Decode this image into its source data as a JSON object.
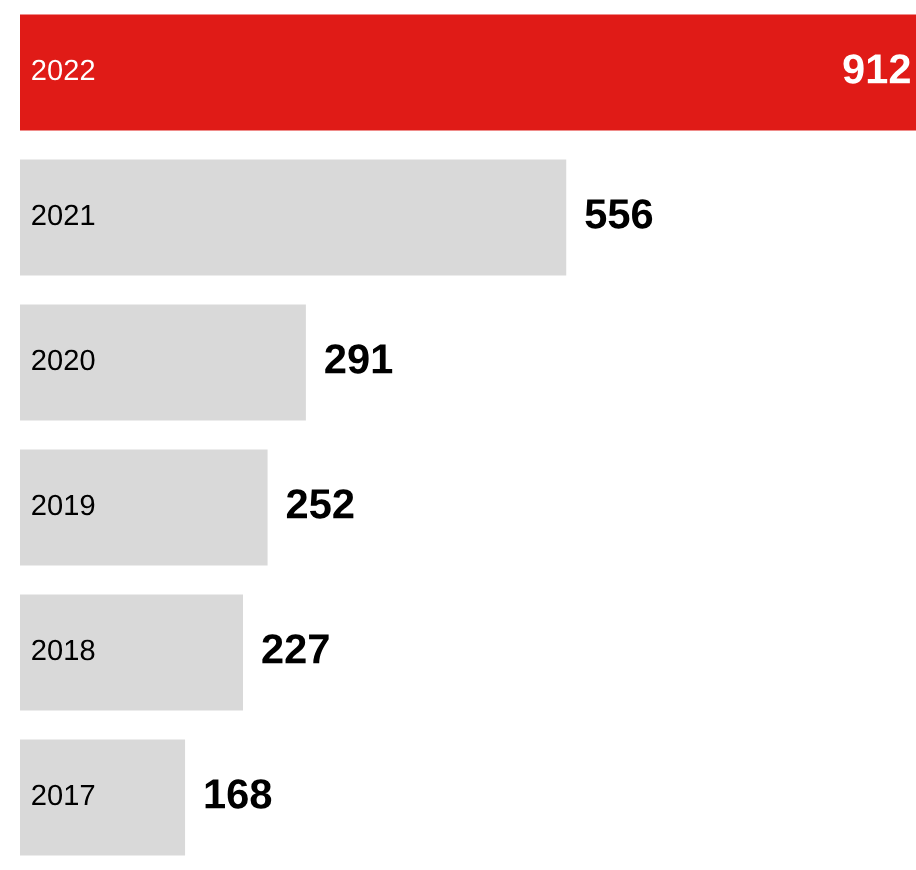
{
  "chart_data": {
    "type": "bar",
    "orientation": "horizontal",
    "categories": [
      "2022",
      "2021",
      "2020",
      "2019",
      "2018",
      "2017"
    ],
    "values": [
      912,
      556,
      291,
      252,
      227,
      168
    ],
    "colors": [
      "#e01b17",
      "#d9d9d9",
      "#d9d9d9",
      "#d9d9d9",
      "#d9d9d9",
      "#d9d9d9"
    ],
    "data_labels": true
  }
}
